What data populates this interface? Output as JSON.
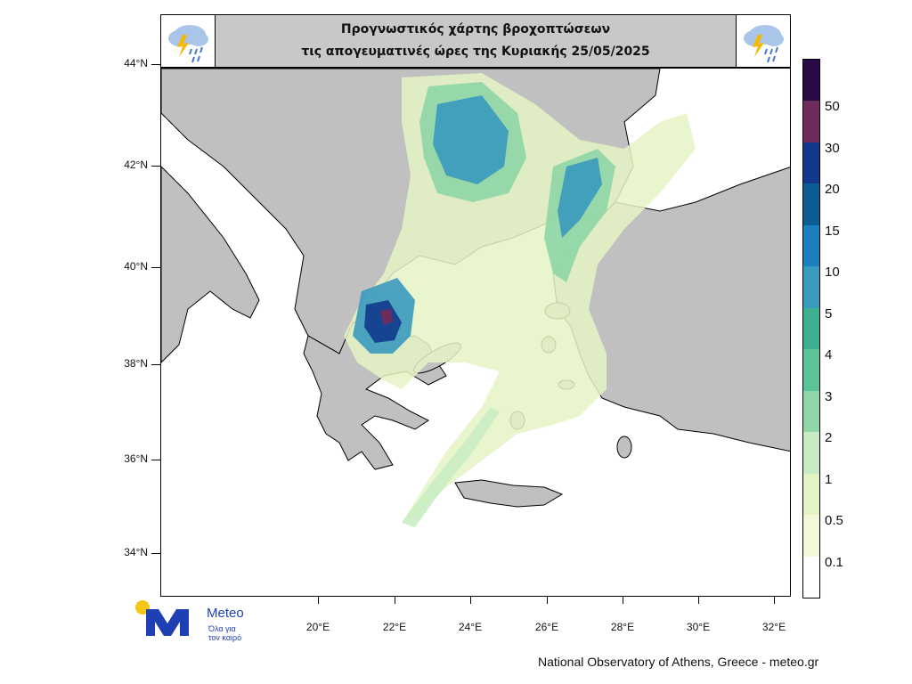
{
  "title": {
    "line1": "Προγνωστικός χάρτης βροχοπτώσεων",
    "line2": "τις απογευματινές ώρες  της Κυριακής 25/05/2025"
  },
  "axes": {
    "lat_labels": [
      "44°N",
      "42°N",
      "40°N",
      "38°N",
      "36°N",
      "34°N"
    ],
    "lon_labels": [
      "20°E",
      "22°E",
      "24°E",
      "26°E",
      "28°E",
      "30°E",
      "32°E"
    ]
  },
  "colorbar": {
    "labels": [
      "50",
      "30",
      "20",
      "15",
      "10",
      "5",
      "4",
      "3",
      "2",
      "1",
      "0.5",
      "0.1"
    ],
    "colors": [
      "#2a0a45",
      "#6e2c5c",
      "#123a8c",
      "#0b5d94",
      "#1a7fbd",
      "#3a9abe",
      "#3bb08f",
      "#5cc29a",
      "#8fd6a8",
      "#c8ebc3",
      "#e5f3c3",
      "#f2f9d8",
      "#ffffff"
    ]
  },
  "logo": {
    "name": "Meteo",
    "tagline_1": "Όλα για",
    "tagline_2": "τον καιρό"
  },
  "credit": "National Observatory of Athens, Greece - meteo.gr",
  "colors": {
    "land": "#c0c0c0",
    "sea": "#ffffff",
    "title_bg": "#c8c8c8",
    "logo_blue": "#1f3fb4",
    "logo_sun": "#f5c518"
  },
  "icons": [
    "storm-cloud-icon"
  ]
}
